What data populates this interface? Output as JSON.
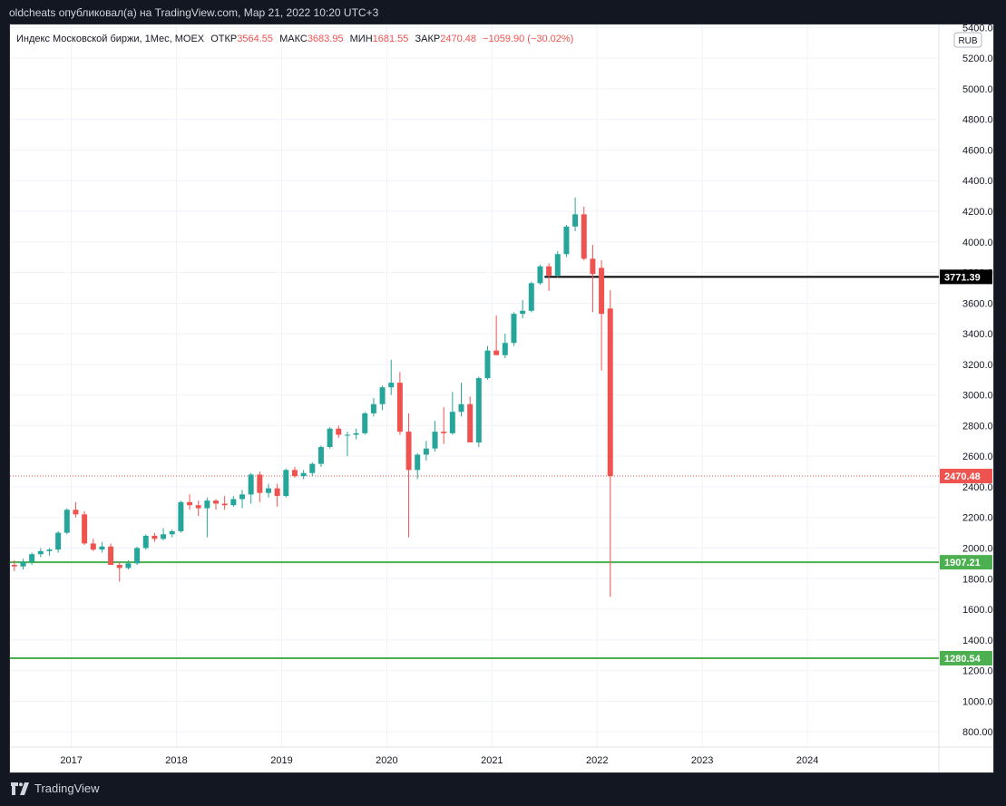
{
  "header": {
    "published_by": "oldcheats опубликовал(а) на TradingView.com, Мар 21, 2022 10:20 UTC+3"
  },
  "legend": {
    "title": "Индекс Московской биржи, 1Мес, MOEX",
    "open_label": "ОТКР",
    "open": "3564.55",
    "high_label": "МАКС",
    "high": "3683.95",
    "low_label": "МИН",
    "low": "1681.55",
    "close_label": "ЗАКР",
    "close": "2470.48",
    "change": "−1059.90 (−30.02%)"
  },
  "currency": "RUB",
  "brand": "TradingView",
  "colors": {
    "up": "#26a69a",
    "down": "#ef5350",
    "support": "#4caf50",
    "resistance": "#000000",
    "background": "#131722",
    "plot_background": "#ffffff",
    "grid": "#f0f3fa"
  },
  "chart_data": {
    "type": "candlestick",
    "interval": "1M",
    "symbol": "MOEX",
    "y_axis": {
      "range": [
        700,
        5420
      ],
      "ticks": [
        800,
        1000,
        1200,
        1400,
        1600,
        1800,
        2000,
        2200,
        2400,
        2600,
        2800,
        3000,
        3200,
        3400,
        3600,
        3800,
        4000,
        4200,
        4400,
        4600,
        4800,
        5000,
        5200,
        5400
      ],
      "tick_labels": [
        "800.00",
        "1000.00",
        "1200.00",
        "1400.00",
        "1600.00",
        "1800.00",
        "2000.00",
        "2200.00",
        "2400.00",
        "2600.00",
        "2800.00",
        "3000.00",
        "3200.00",
        "3400.00",
        "3600.00",
        "3800.00",
        "4000.00",
        "4200.00",
        "4400.00",
        "4600.00",
        "4800.00",
        "5000.00",
        "5200.00",
        "5400.00"
      ]
    },
    "x_axis": {
      "range": [
        "2016-06",
        "2025-04"
      ],
      "ticks": [
        "2017-01",
        "2018-01",
        "2019-01",
        "2020-01",
        "2021-01",
        "2022-01",
        "2023-01",
        "2024-01"
      ],
      "tick_labels": [
        "2017",
        "2018",
        "2019",
        "2020",
        "2021",
        "2022",
        "2023",
        "2024"
      ]
    },
    "grid": true,
    "candles": [
      {
        "date": "2016-06",
        "o": 1890,
        "h": 1920,
        "l": 1850,
        "c": 1880
      },
      {
        "date": "2016-07",
        "o": 1880,
        "h": 1930,
        "l": 1860,
        "c": 1910
      },
      {
        "date": "2016-08",
        "o": 1910,
        "h": 1970,
        "l": 1890,
        "c": 1960
      },
      {
        "date": "2016-09",
        "o": 1960,
        "h": 2000,
        "l": 1940,
        "c": 1980
      },
      {
        "date": "2016-10",
        "o": 1980,
        "h": 2000,
        "l": 1950,
        "c": 1990
      },
      {
        "date": "2016-11",
        "o": 1990,
        "h": 2110,
        "l": 1970,
        "c": 2100
      },
      {
        "date": "2016-12",
        "o": 2100,
        "h": 2260,
        "l": 2090,
        "c": 2250
      },
      {
        "date": "2017-01",
        "o": 2250,
        "h": 2300,
        "l": 2200,
        "c": 2220
      },
      {
        "date": "2017-02",
        "o": 2220,
        "h": 2240,
        "l": 2020,
        "c": 2030
      },
      {
        "date": "2017-03",
        "o": 2030,
        "h": 2060,
        "l": 1980,
        "c": 1990
      },
      {
        "date": "2017-04",
        "o": 1990,
        "h": 2040,
        "l": 1970,
        "c": 2010
      },
      {
        "date": "2017-05",
        "o": 2010,
        "h": 2030,
        "l": 1890,
        "c": 1890
      },
      {
        "date": "2017-06",
        "o": 1890,
        "h": 1910,
        "l": 1780,
        "c": 1870
      },
      {
        "date": "2017-07",
        "o": 1870,
        "h": 1920,
        "l": 1860,
        "c": 1900
      },
      {
        "date": "2017-08",
        "o": 1900,
        "h": 2010,
        "l": 1890,
        "c": 2000
      },
      {
        "date": "2017-09",
        "o": 2000,
        "h": 2090,
        "l": 1990,
        "c": 2080
      },
      {
        "date": "2017-10",
        "o": 2080,
        "h": 2100,
        "l": 2040,
        "c": 2060
      },
      {
        "date": "2017-11",
        "o": 2060,
        "h": 2130,
        "l": 2050,
        "c": 2090
      },
      {
        "date": "2017-12",
        "o": 2090,
        "h": 2120,
        "l": 2070,
        "c": 2110
      },
      {
        "date": "2018-01",
        "o": 2110,
        "h": 2310,
        "l": 2100,
        "c": 2300
      },
      {
        "date": "2018-02",
        "o": 2300,
        "h": 2350,
        "l": 2250,
        "c": 2280
      },
      {
        "date": "2018-03",
        "o": 2280,
        "h": 2310,
        "l": 2210,
        "c": 2260
      },
      {
        "date": "2018-04",
        "o": 2260,
        "h": 2330,
        "l": 2070,
        "c": 2310
      },
      {
        "date": "2018-05",
        "o": 2310,
        "h": 2320,
        "l": 2250,
        "c": 2290
      },
      {
        "date": "2018-06",
        "o": 2290,
        "h": 2340,
        "l": 2250,
        "c": 2280
      },
      {
        "date": "2018-07",
        "o": 2280,
        "h": 2340,
        "l": 2270,
        "c": 2320
      },
      {
        "date": "2018-08",
        "o": 2320,
        "h": 2380,
        "l": 2260,
        "c": 2350
      },
      {
        "date": "2018-09",
        "o": 2350,
        "h": 2490,
        "l": 2290,
        "c": 2480
      },
      {
        "date": "2018-10",
        "o": 2480,
        "h": 2500,
        "l": 2300,
        "c": 2360
      },
      {
        "date": "2018-11",
        "o": 2360,
        "h": 2420,
        "l": 2330,
        "c": 2390
      },
      {
        "date": "2018-12",
        "o": 2390,
        "h": 2420,
        "l": 2270,
        "c": 2340
      },
      {
        "date": "2019-01",
        "o": 2340,
        "h": 2520,
        "l": 2330,
        "c": 2510
      },
      {
        "date": "2019-02",
        "o": 2510,
        "h": 2530,
        "l": 2460,
        "c": 2470
      },
      {
        "date": "2019-03",
        "o": 2470,
        "h": 2510,
        "l": 2450,
        "c": 2490
      },
      {
        "date": "2019-04",
        "o": 2490,
        "h": 2560,
        "l": 2470,
        "c": 2550
      },
      {
        "date": "2019-05",
        "o": 2550,
        "h": 2670,
        "l": 2530,
        "c": 2660
      },
      {
        "date": "2019-06",
        "o": 2660,
        "h": 2790,
        "l": 2650,
        "c": 2780
      },
      {
        "date": "2019-07",
        "o": 2780,
        "h": 2800,
        "l": 2720,
        "c": 2740
      },
      {
        "date": "2019-08",
        "o": 2740,
        "h": 2760,
        "l": 2600,
        "c": 2740
      },
      {
        "date": "2019-09",
        "o": 2740,
        "h": 2780,
        "l": 2710,
        "c": 2750
      },
      {
        "date": "2019-10",
        "o": 2750,
        "h": 2890,
        "l": 2740,
        "c": 2880
      },
      {
        "date": "2019-11",
        "o": 2880,
        "h": 2980,
        "l": 2860,
        "c": 2940
      },
      {
        "date": "2019-12",
        "o": 2940,
        "h": 3060,
        "l": 2900,
        "c": 3050
      },
      {
        "date": "2020-01",
        "o": 3050,
        "h": 3230,
        "l": 3000,
        "c": 3080
      },
      {
        "date": "2020-02",
        "o": 3080,
        "h": 3150,
        "l": 2740,
        "c": 2760
      },
      {
        "date": "2020-03",
        "o": 2760,
        "h": 2880,
        "l": 2070,
        "c": 2510
      },
      {
        "date": "2020-04",
        "o": 2510,
        "h": 2620,
        "l": 2450,
        "c": 2610
      },
      {
        "date": "2020-05",
        "o": 2610,
        "h": 2700,
        "l": 2570,
        "c": 2650
      },
      {
        "date": "2020-06",
        "o": 2650,
        "h": 2830,
        "l": 2630,
        "c": 2760
      },
      {
        "date": "2020-07",
        "o": 2760,
        "h": 2920,
        "l": 2680,
        "c": 2750
      },
      {
        "date": "2020-08",
        "o": 2750,
        "h": 3020,
        "l": 2740,
        "c": 2890
      },
      {
        "date": "2020-09",
        "o": 2890,
        "h": 3080,
        "l": 2860,
        "c": 2940
      },
      {
        "date": "2020-10",
        "o": 2940,
        "h": 2990,
        "l": 2690,
        "c": 2690
      },
      {
        "date": "2020-11",
        "o": 2690,
        "h": 3120,
        "l": 2660,
        "c": 3110
      },
      {
        "date": "2020-12",
        "o": 3110,
        "h": 3320,
        "l": 3100,
        "c": 3290
      },
      {
        "date": "2021-01",
        "o": 3290,
        "h": 3520,
        "l": 3260,
        "c": 3260
      },
      {
        "date": "2021-02",
        "o": 3260,
        "h": 3400,
        "l": 3240,
        "c": 3340
      },
      {
        "date": "2021-03",
        "o": 3340,
        "h": 3540,
        "l": 3320,
        "c": 3530
      },
      {
        "date": "2021-04",
        "o": 3530,
        "h": 3620,
        "l": 3500,
        "c": 3550
      },
      {
        "date": "2021-05",
        "o": 3550,
        "h": 3740,
        "l": 3540,
        "c": 3730
      },
      {
        "date": "2021-06",
        "o": 3730,
        "h": 3850,
        "l": 3720,
        "c": 3840
      },
      {
        "date": "2021-07",
        "o": 3840,
        "h": 3860,
        "l": 3680,
        "c": 3780
      },
      {
        "date": "2021-08",
        "o": 3780,
        "h": 3940,
        "l": 3770,
        "c": 3920
      },
      {
        "date": "2021-09",
        "o": 3920,
        "h": 4110,
        "l": 3900,
        "c": 4100
      },
      {
        "date": "2021-10",
        "o": 4100,
        "h": 4290,
        "l": 4070,
        "c": 4180
      },
      {
        "date": "2021-11",
        "o": 4180,
        "h": 4230,
        "l": 3880,
        "c": 3890
      },
      {
        "date": "2021-12",
        "o": 3890,
        "h": 3980,
        "l": 3540,
        "c": 3790
      },
      {
        "date": "2022-01",
        "o": 3830,
        "h": 3880,
        "l": 3160,
        "c": 3530
      },
      {
        "date": "2022-02",
        "o": 3564.55,
        "h": 3683.95,
        "l": 1681.55,
        "c": 2470.48
      }
    ],
    "horizontal_lines": [
      {
        "value": 3771.39,
        "label": "3771.39",
        "color": "#000000"
      },
      {
        "value": 1907.21,
        "label": "1907.21",
        "color": "#4caf50"
      },
      {
        "value": 1280.54,
        "label": "1280.54",
        "color": "#4caf50"
      }
    ],
    "last_price": {
      "value": 2470.48,
      "label": "2470.48",
      "color": "#ef5350"
    }
  }
}
